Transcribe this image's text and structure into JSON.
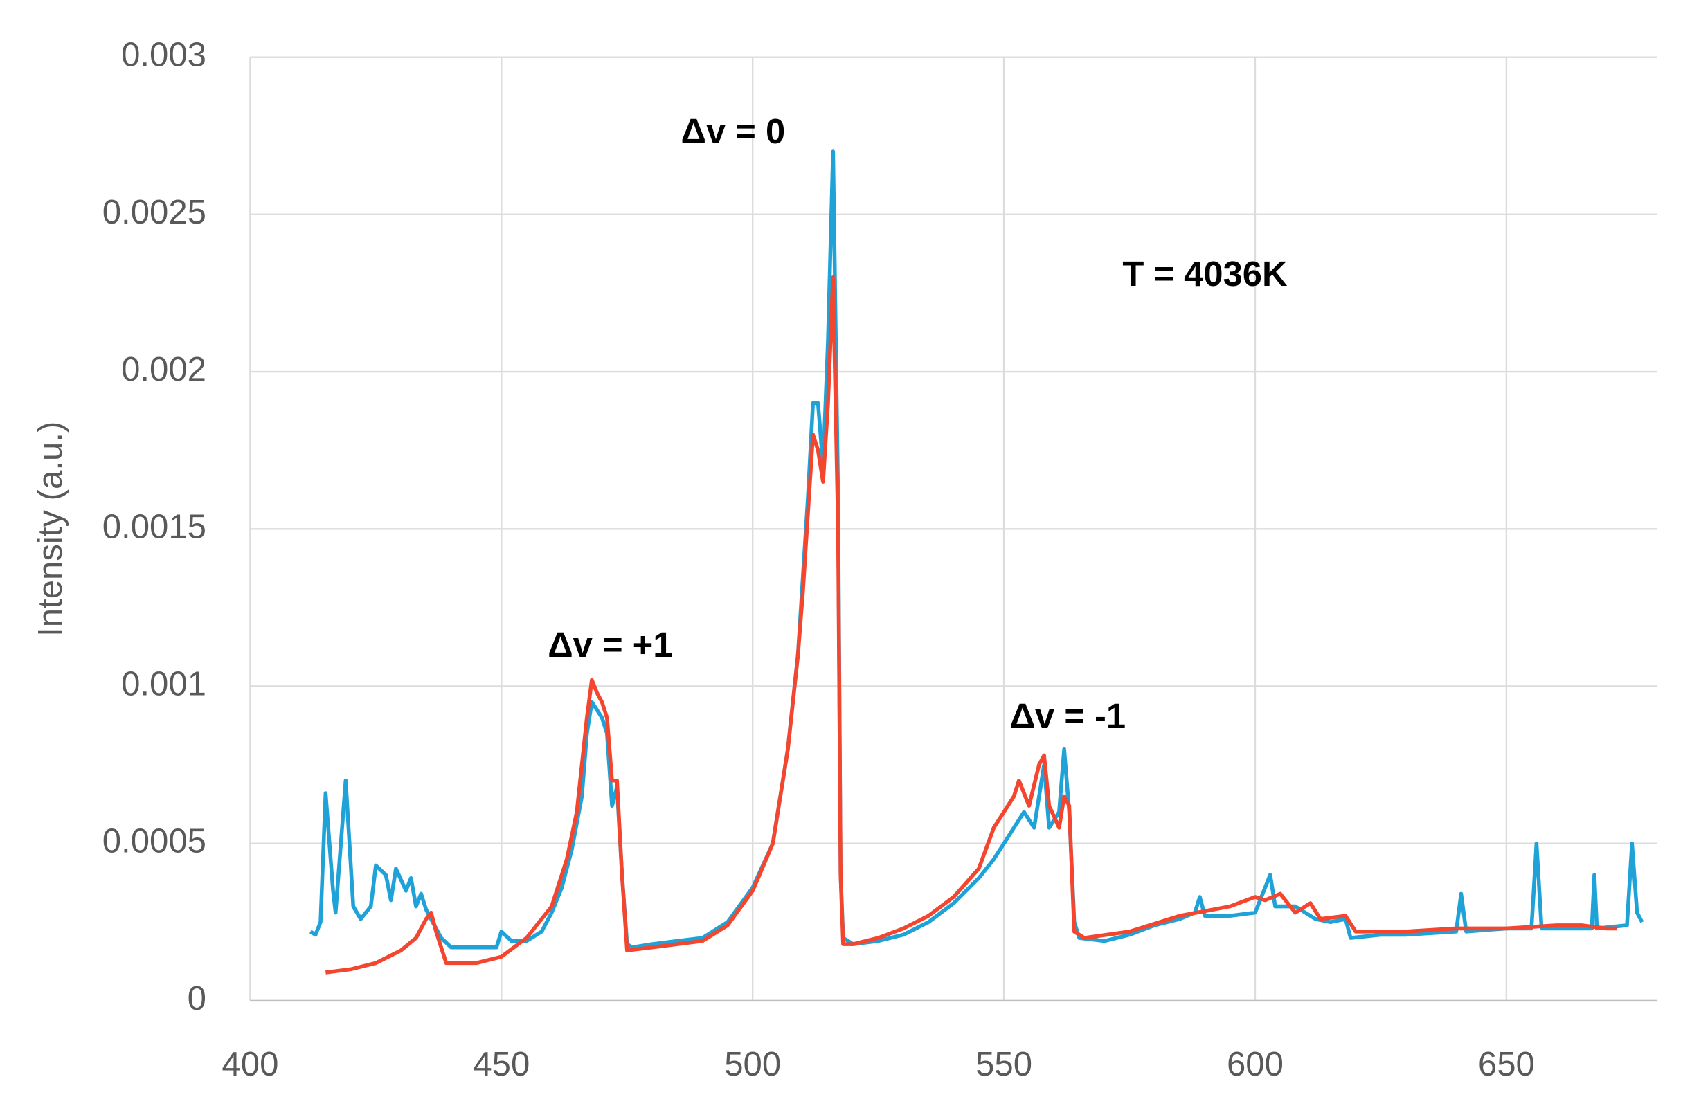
{
  "chart_data": {
    "type": "line",
    "y_label": "Intensity (a.u.)",
    "annotations": [
      "Δv = 0",
      "T = 4036K",
      "Δv = +1",
      "Δv = -1"
    ],
    "xlim": [
      400,
      680
    ],
    "xticks": [
      400,
      450,
      500,
      550,
      600,
      650
    ],
    "ylim": [
      0,
      0.003
    ],
    "yticks": [
      0,
      0.0005,
      0.001,
      0.0015,
      0.002,
      0.0025,
      0.003
    ],
    "grid": true,
    "series": [
      {
        "color": "#1ea2d8",
        "x": [
          412,
          413,
          414,
          415,
          416.5,
          417,
          419,
          420.5,
          422,
          424,
          425,
          427,
          428,
          429,
          431,
          432,
          433,
          434,
          435,
          436,
          438,
          440,
          445,
          449,
          450,
          452,
          455,
          458,
          460,
          462,
          464,
          466,
          467,
          468,
          470,
          471,
          472,
          473,
          474,
          475,
          476,
          480,
          485,
          490,
          495,
          500,
          504,
          507,
          509,
          511,
          512,
          513,
          514,
          515,
          516,
          517,
          517.5,
          518,
          520,
          525,
          530,
          535,
          540,
          545,
          548,
          550,
          552,
          554,
          556,
          558,
          559,
          561,
          562,
          563,
          564,
          565,
          570,
          575,
          580,
          585,
          588,
          589,
          590,
          595,
          600,
          603,
          604,
          608,
          612,
          615,
          618,
          619,
          625,
          630,
          640,
          641,
          642,
          650,
          655,
          656,
          657,
          665,
          667,
          667.5,
          668,
          674,
          675,
          676,
          677
        ],
        "values": [
          0.00022,
          0.00021,
          0.00025,
          0.00066,
          0.00035,
          0.00028,
          0.0007,
          0.0003,
          0.00026,
          0.0003,
          0.00043,
          0.0004,
          0.00032,
          0.00042,
          0.00035,
          0.00039,
          0.0003,
          0.00034,
          0.00029,
          0.00026,
          0.0002,
          0.00017,
          0.00017,
          0.00017,
          0.00022,
          0.00019,
          0.00019,
          0.00022,
          0.00028,
          0.00036,
          0.00048,
          0.00065,
          0.00085,
          0.00095,
          0.0009,
          0.00085,
          0.00062,
          0.00068,
          0.0004,
          0.00018,
          0.00017,
          0.00018,
          0.00019,
          0.0002,
          0.00025,
          0.00036,
          0.0005,
          0.0008,
          0.0011,
          0.0016,
          0.0019,
          0.0019,
          0.0017,
          0.0021,
          0.0027,
          0.0016,
          0.0004,
          0.0002,
          0.00018,
          0.00019,
          0.00021,
          0.00025,
          0.00031,
          0.00039,
          0.00045,
          0.0005,
          0.00055,
          0.0006,
          0.00055,
          0.00075,
          0.00055,
          0.0006,
          0.0008,
          0.0006,
          0.00025,
          0.0002,
          0.00019,
          0.00021,
          0.00024,
          0.00026,
          0.00028,
          0.00033,
          0.00027,
          0.00027,
          0.00028,
          0.0004,
          0.0003,
          0.0003,
          0.00026,
          0.00025,
          0.00026,
          0.0002,
          0.00021,
          0.00021,
          0.00022,
          0.00034,
          0.00022,
          0.00023,
          0.00023,
          0.0005,
          0.00023,
          0.00023,
          0.00023,
          0.0004,
          0.00023,
          0.00024,
          0.0005,
          0.00028,
          0.00025
        ]
      },
      {
        "color": "#f4462e",
        "x": [
          415,
          420,
          425,
          430,
          433,
          435,
          436,
          437,
          439,
          445,
          450,
          455,
          460,
          463,
          465,
          467,
          468,
          469,
          470,
          471,
          472,
          473,
          474,
          475,
          480,
          490,
          495,
          500,
          504,
          507,
          509,
          510,
          512,
          513,
          514,
          515,
          516,
          517,
          517.5,
          518,
          520,
          525,
          530,
          535,
          540,
          545,
          548,
          550,
          552,
          553,
          555,
          557,
          558,
          559,
          561,
          562,
          563,
          564,
          566,
          575,
          585,
          595,
          600,
          602,
          605,
          608,
          611,
          613,
          618,
          620,
          630,
          640,
          650,
          660,
          665,
          670,
          672
        ],
        "values": [
          9e-05,
          0.0001,
          0.00012,
          0.00016,
          0.0002,
          0.00026,
          0.00028,
          0.00022,
          0.00012,
          0.00012,
          0.00014,
          0.0002,
          0.0003,
          0.00045,
          0.0006,
          0.0009,
          0.00102,
          0.00098,
          0.00095,
          0.0009,
          0.0007,
          0.0007,
          0.0004,
          0.00016,
          0.00017,
          0.00019,
          0.00024,
          0.00035,
          0.0005,
          0.0008,
          0.0011,
          0.0013,
          0.0018,
          0.00175,
          0.00165,
          0.0019,
          0.0023,
          0.0015,
          0.0004,
          0.00018,
          0.00018,
          0.0002,
          0.00023,
          0.00027,
          0.00033,
          0.00042,
          0.00055,
          0.0006,
          0.00065,
          0.0007,
          0.00062,
          0.00075,
          0.00078,
          0.00062,
          0.00055,
          0.00065,
          0.00062,
          0.00022,
          0.0002,
          0.00022,
          0.00027,
          0.0003,
          0.00033,
          0.00032,
          0.00034,
          0.00028,
          0.00031,
          0.00026,
          0.00027,
          0.00022,
          0.00022,
          0.00023,
          0.00023,
          0.00024,
          0.00024,
          0.00023,
          0.00023
        ]
      }
    ]
  }
}
